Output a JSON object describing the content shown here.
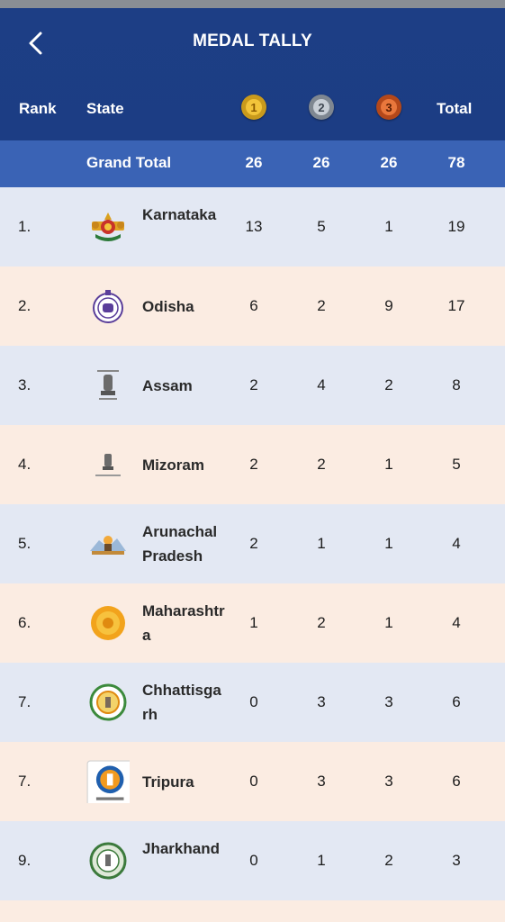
{
  "header": {
    "title": "MEDAL TALLY",
    "columns": {
      "rank": "Rank",
      "state": "State",
      "gold": "1",
      "silver": "2",
      "bronze": "3",
      "total": "Total"
    }
  },
  "grand_total": {
    "label": "Grand Total",
    "gold": "26",
    "silver": "26",
    "bronze": "26",
    "total": "78"
  },
  "rows": [
    {
      "rank": "1.",
      "state": "Karnataka",
      "gold": "13",
      "silver": "5",
      "bronze": "1",
      "total": "19"
    },
    {
      "rank": "2.",
      "state": "Odisha",
      "gold": "6",
      "silver": "2",
      "bronze": "9",
      "total": "17"
    },
    {
      "rank": "3.",
      "state": "Assam",
      "gold": "2",
      "silver": "4",
      "bronze": "2",
      "total": "8"
    },
    {
      "rank": "4.",
      "state": "Mizoram",
      "gold": "2",
      "silver": "2",
      "bronze": "1",
      "total": "5"
    },
    {
      "rank": "5.",
      "state": "Arunachal Pradesh",
      "gold": "2",
      "silver": "1",
      "bronze": "1",
      "total": "4"
    },
    {
      "rank": "6.",
      "state": "Maharashtra",
      "gold": "1",
      "silver": "2",
      "bronze": "1",
      "total": "4"
    },
    {
      "rank": "7.",
      "state": "Chhattisgarh",
      "gold": "0",
      "silver": "3",
      "bronze": "3",
      "total": "6"
    },
    {
      "rank": "7.",
      "state": "Tripura",
      "gold": "0",
      "silver": "3",
      "bronze": "3",
      "total": "6"
    },
    {
      "rank": "9.",
      "state": "Jharkhand",
      "gold": "0",
      "silver": "1",
      "bronze": "2",
      "total": "3"
    }
  ],
  "icons": {
    "back": "back-arrow-icon",
    "gold": "gold-medal-icon",
    "silver": "silver-medal-icon",
    "bronze": "bronze-medal-icon"
  },
  "colors": {
    "header": "#1d3e85",
    "grand_total": "#3a63b5",
    "row_blue": "#e3e8f3",
    "row_peach": "#fbece2"
  }
}
